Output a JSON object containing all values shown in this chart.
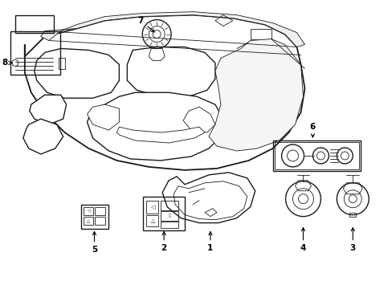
{
  "bg_color": "#ffffff",
  "line_color": "#1a1a1a",
  "fig_width": 4.89,
  "fig_height": 3.6,
  "dpi": 100,
  "font_size": 7.5,
  "lw_main": 1.0,
  "lw_thin": 0.6,
  "lw_thick": 1.3
}
